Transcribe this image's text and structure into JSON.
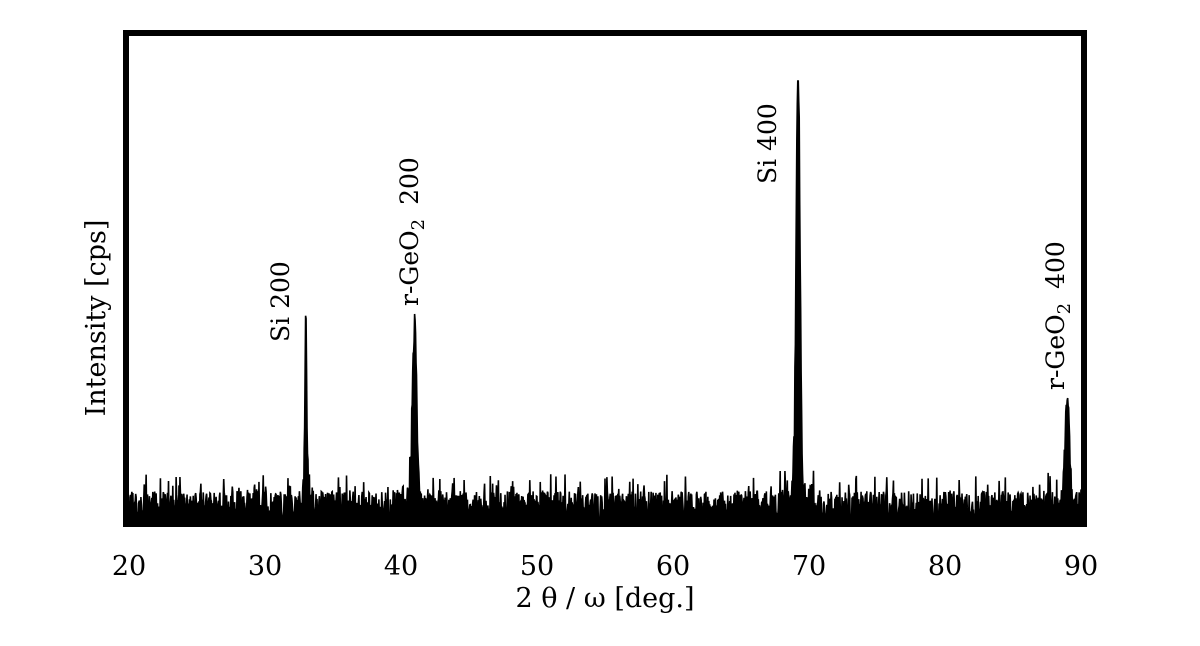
{
  "chart_data": {
    "type": "line",
    "title": "",
    "xlabel": "2 θ / ω [deg.]",
    "ylabel": "Intensity [cps]",
    "xlim": [
      20,
      90
    ],
    "ylim": [
      0,
      100
    ],
    "x_ticks": [
      "20",
      "30",
      "40",
      "50",
      "60",
      "70",
      "80",
      "90"
    ],
    "y_ticks": [],
    "grid": false,
    "legend": "none",
    "line_color": "#000000",
    "noise_level": 8,
    "peaks": [
      {
        "label": "Si 200",
        "x": 33.0,
        "height": 41,
        "width": 0.07
      },
      {
        "label": "r-GeO2 200",
        "x": 41.0,
        "height": 40,
        "width": 0.16
      },
      {
        "label": "Si 400",
        "x": 69.2,
        "height": 100,
        "width": 0.14
      },
      {
        "label": "r-GeO2 400",
        "x": 89.0,
        "height": 24,
        "width": 0.16
      }
    ],
    "annotations": [
      {
        "id": "si200",
        "text_main": "Si 200",
        "x": 33.0
      },
      {
        "id": "rgeo2-200",
        "text_prefix": "r-GeO",
        "text_sub": "2",
        "text_suffix": "200",
        "x": 41.0
      },
      {
        "id": "si400",
        "text_main": "Si 400",
        "x": 69.2
      },
      {
        "id": "rgeo2-400",
        "text_prefix": "r-GeO",
        "text_sub": "2",
        "text_suffix": "400",
        "x": 89.0
      }
    ]
  }
}
